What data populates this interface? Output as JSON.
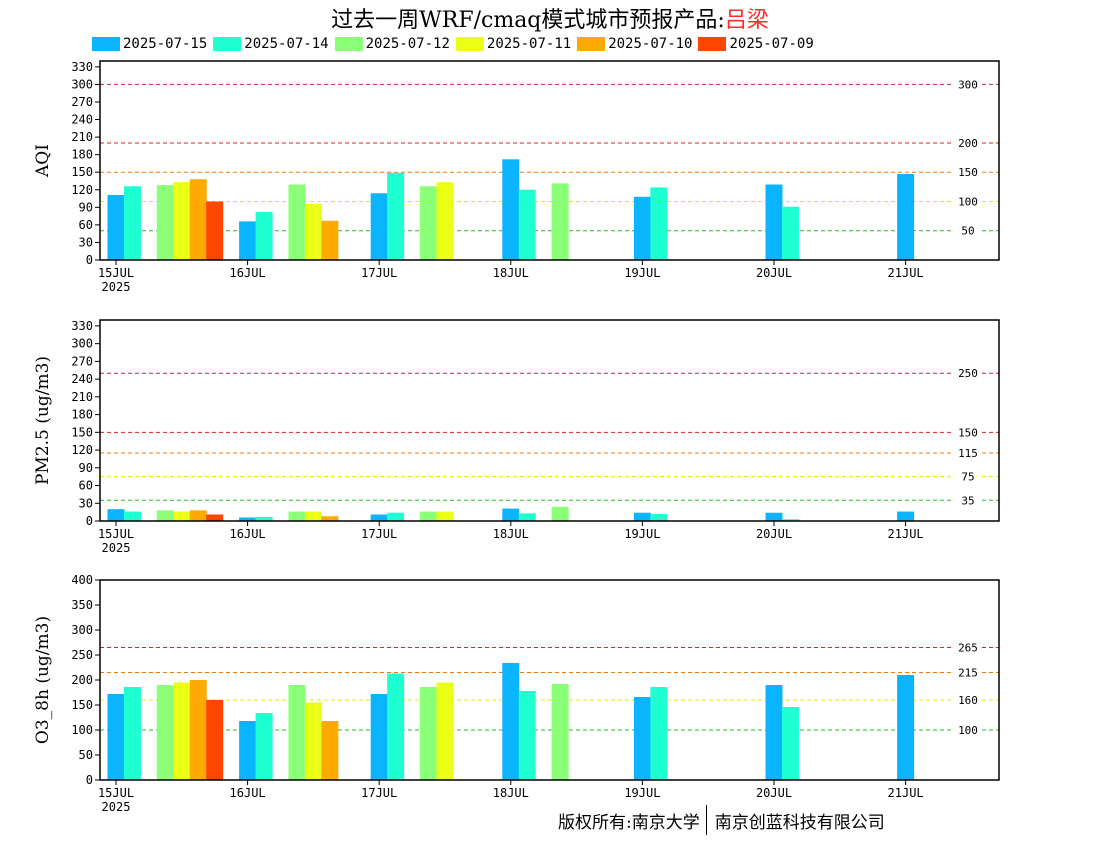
{
  "title": {
    "main": "过去一周WRF/cmaq模式城市预报产品:",
    "city": "吕梁"
  },
  "colors": {
    "series": [
      "#0ab4ff",
      "#1effd2",
      "#8cff78",
      "#eaff14",
      "#ffaa00",
      "#ff4600"
    ]
  },
  "copyright": {
    "left": "版权所有:南京大学",
    "right": "南京创蓝科技有限公司"
  },
  "chart_data": [
    {
      "type": "bar",
      "ylabel": "AQI",
      "ylim": [
        0,
        340
      ],
      "yticks": [
        0,
        30,
        60,
        90,
        120,
        150,
        180,
        210,
        240,
        270,
        300,
        330
      ],
      "xticks": [
        "15JUL",
        "16JUL",
        "17JUL",
        "18JUL",
        "19JUL",
        "20JUL",
        "21JUL"
      ],
      "xsub": "2025",
      "legend": [
        "2025-07-15",
        "2025-07-14",
        "2025-07-12",
        "2025-07-11",
        "2025-07-10",
        "2025-07-09"
      ],
      "thresholds": [
        {
          "value": 300,
          "label": "300",
          "color": "#cc1a66"
        },
        {
          "value": 200,
          "label": "200",
          "color": "#e02020"
        },
        {
          "value": 150,
          "label": "150",
          "color": "#f07a00"
        },
        {
          "value": 100,
          "label": "100",
          "color": "#e8e800"
        },
        {
          "value": 50,
          "label": "50",
          "color": "#20c020"
        }
      ],
      "bars": [
        {
          "s": 0,
          "x": 0.0,
          "v": 111
        },
        {
          "s": 1,
          "x": 0.125,
          "v": 126
        },
        {
          "s": 2,
          "x": 0.375,
          "v": 128
        },
        {
          "s": 3,
          "x": 0.5,
          "v": 133
        },
        {
          "s": 4,
          "x": 0.625,
          "v": 138
        },
        {
          "s": 5,
          "x": 0.75,
          "v": 100
        },
        {
          "s": 0,
          "x": 1.0,
          "v": 66
        },
        {
          "s": 1,
          "x": 1.125,
          "v": 82
        },
        {
          "s": 2,
          "x": 1.375,
          "v": 129
        },
        {
          "s": 3,
          "x": 1.5,
          "v": 96
        },
        {
          "s": 4,
          "x": 1.625,
          "v": 67
        },
        {
          "s": 0,
          "x": 2.0,
          "v": 114
        },
        {
          "s": 1,
          "x": 2.125,
          "v": 149
        },
        {
          "s": 2,
          "x": 2.375,
          "v": 126
        },
        {
          "s": 3,
          "x": 2.5,
          "v": 133
        },
        {
          "s": 0,
          "x": 3.0,
          "v": 172
        },
        {
          "s": 1,
          "x": 3.125,
          "v": 120
        },
        {
          "s": 2,
          "x": 3.375,
          "v": 131
        },
        {
          "s": 0,
          "x": 4.0,
          "v": 108
        },
        {
          "s": 1,
          "x": 4.125,
          "v": 124
        },
        {
          "s": 0,
          "x": 5.0,
          "v": 129
        },
        {
          "s": 1,
          "x": 5.125,
          "v": 91
        },
        {
          "s": 0,
          "x": 6.0,
          "v": 147
        }
      ]
    },
    {
      "type": "bar",
      "ylabel": "PM2.5 (ug/m3)",
      "ylim": [
        0,
        340
      ],
      "yticks": [
        0,
        30,
        60,
        90,
        120,
        150,
        180,
        210,
        240,
        270,
        300,
        330
      ],
      "xticks": [
        "15JUL",
        "16JUL",
        "17JUL",
        "18JUL",
        "19JUL",
        "20JUL",
        "21JUL"
      ],
      "xsub": "2025",
      "thresholds": [
        {
          "value": 250,
          "label": "250",
          "color": "#cc1a66"
        },
        {
          "value": 150,
          "label": "150",
          "color": "#e02020"
        },
        {
          "value": 115,
          "label": "115",
          "color": "#f07a00"
        },
        {
          "value": 75,
          "label": "75",
          "color": "#e8e800"
        },
        {
          "value": 35,
          "label": "35",
          "color": "#20c020"
        }
      ],
      "bars": [
        {
          "s": 0,
          "x": 0.0,
          "v": 20
        },
        {
          "s": 1,
          "x": 0.125,
          "v": 16
        },
        {
          "s": 2,
          "x": 0.375,
          "v": 18
        },
        {
          "s": 3,
          "x": 0.5,
          "v": 16
        },
        {
          "s": 4,
          "x": 0.625,
          "v": 18
        },
        {
          "s": 5,
          "x": 0.75,
          "v": 11
        },
        {
          "s": 0,
          "x": 1.0,
          "v": 6
        },
        {
          "s": 1,
          "x": 1.125,
          "v": 7
        },
        {
          "s": 2,
          "x": 1.375,
          "v": 16
        },
        {
          "s": 3,
          "x": 1.5,
          "v": 16
        },
        {
          "s": 4,
          "x": 1.625,
          "v": 8
        },
        {
          "s": 0,
          "x": 2.0,
          "v": 11
        },
        {
          "s": 1,
          "x": 2.125,
          "v": 14
        },
        {
          "s": 2,
          "x": 2.375,
          "v": 16
        },
        {
          "s": 3,
          "x": 2.5,
          "v": 16
        },
        {
          "s": 0,
          "x": 3.0,
          "v": 21
        },
        {
          "s": 1,
          "x": 3.125,
          "v": 13
        },
        {
          "s": 2,
          "x": 3.375,
          "v": 24
        },
        {
          "s": 0,
          "x": 4.0,
          "v": 14
        },
        {
          "s": 1,
          "x": 4.125,
          "v": 12
        },
        {
          "s": 0,
          "x": 5.0,
          "v": 14
        },
        {
          "s": 1,
          "x": 5.125,
          "v": 3
        },
        {
          "s": 0,
          "x": 6.0,
          "v": 16
        }
      ]
    },
    {
      "type": "bar",
      "ylabel": "O3_8h (ug/m3)",
      "ylim": [
        0,
        400
      ],
      "yticks": [
        0,
        50,
        100,
        150,
        200,
        250,
        300,
        350,
        400
      ],
      "xticks": [
        "15JUL",
        "16JUL",
        "17JUL",
        "18JUL",
        "19JUL",
        "20JUL",
        "21JUL"
      ],
      "xsub": "2025",
      "thresholds": [
        {
          "value": 265,
          "label": "265",
          "color": "#e02020"
        },
        {
          "value": 215,
          "label": "215",
          "color": "#f07a00"
        },
        {
          "value": 160,
          "label": "160",
          "color": "#e8e800"
        },
        {
          "value": 100,
          "label": "100",
          "color": "#20c020"
        }
      ],
      "bars": [
        {
          "s": 0,
          "x": 0.0,
          "v": 172
        },
        {
          "s": 1,
          "x": 0.125,
          "v": 186
        },
        {
          "s": 2,
          "x": 0.375,
          "v": 190
        },
        {
          "s": 3,
          "x": 0.5,
          "v": 195
        },
        {
          "s": 4,
          "x": 0.625,
          "v": 200
        },
        {
          "s": 5,
          "x": 0.75,
          "v": 160
        },
        {
          "s": 0,
          "x": 1.0,
          "v": 118
        },
        {
          "s": 1,
          "x": 1.125,
          "v": 134
        },
        {
          "s": 2,
          "x": 1.375,
          "v": 190
        },
        {
          "s": 3,
          "x": 1.5,
          "v": 155
        },
        {
          "s": 4,
          "x": 1.625,
          "v": 118
        },
        {
          "s": 0,
          "x": 2.0,
          "v": 172
        },
        {
          "s": 1,
          "x": 2.125,
          "v": 213
        },
        {
          "s": 2,
          "x": 2.375,
          "v": 186
        },
        {
          "s": 3,
          "x": 2.5,
          "v": 195
        },
        {
          "s": 0,
          "x": 3.0,
          "v": 234
        },
        {
          "s": 1,
          "x": 3.125,
          "v": 178
        },
        {
          "s": 2,
          "x": 3.375,
          "v": 192
        },
        {
          "s": 0,
          "x": 4.0,
          "v": 166
        },
        {
          "s": 1,
          "x": 4.125,
          "v": 186
        },
        {
          "s": 0,
          "x": 5.0,
          "v": 190
        },
        {
          "s": 1,
          "x": 5.125,
          "v": 146
        },
        {
          "s": 0,
          "x": 6.0,
          "v": 210
        }
      ]
    }
  ]
}
